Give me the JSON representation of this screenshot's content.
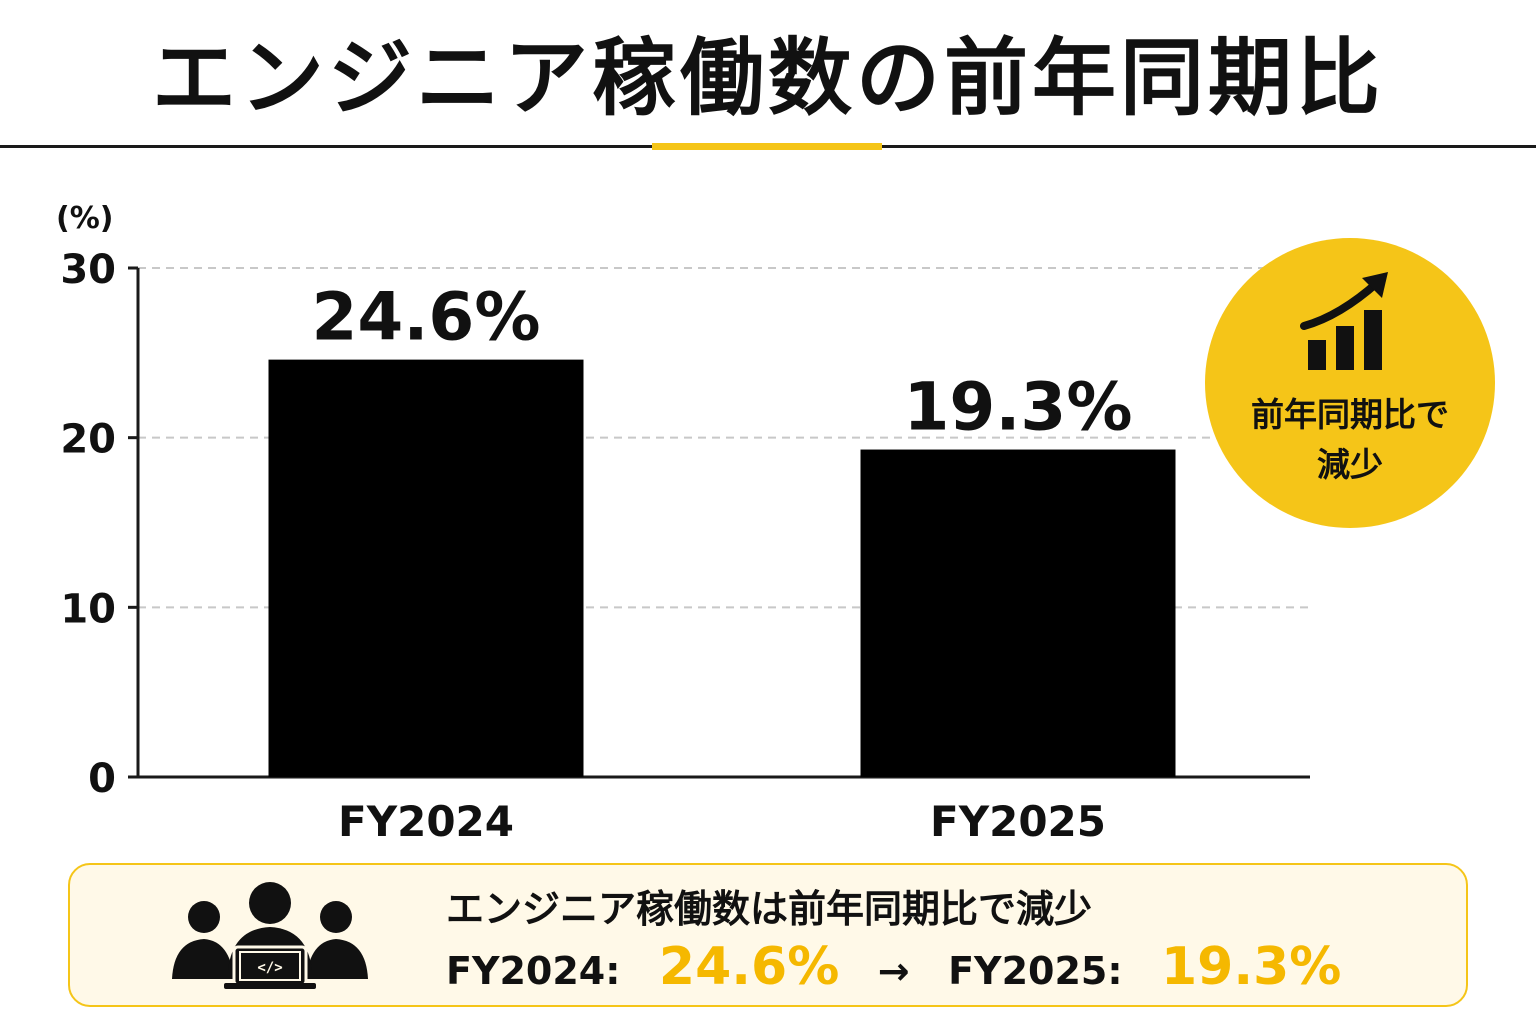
{
  "header": {
    "title": "エンジニア稼働数の前年同期比"
  },
  "chart_data": {
    "type": "bar",
    "title": "",
    "xlabel": "",
    "ylabel": "(%)",
    "categories": [
      "FY2024",
      "FY2025"
    ],
    "values": [
      24.6,
      19.3
    ],
    "data_labels": [
      "24.6%",
      "19.3%"
    ],
    "ylim": [
      0,
      30
    ],
    "yticks": [
      "0",
      "10",
      "20",
      "30"
    ],
    "grid": true,
    "bar_color": "#000000"
  },
  "badge": {
    "line1": "前年同期比で",
    "line2": "減少",
    "icon": "growth-chart-icon",
    "color": "#F5C518"
  },
  "summary": {
    "icon": "engineer-team-icon",
    "headline": "エンジニア稼働数は前年同期比で減少",
    "from_label": "FY2024:",
    "from_value": "24.6%",
    "arrow": "→",
    "to_label": "FY2025:",
    "to_value": "19.3%",
    "accent_color": "#F5B800"
  }
}
